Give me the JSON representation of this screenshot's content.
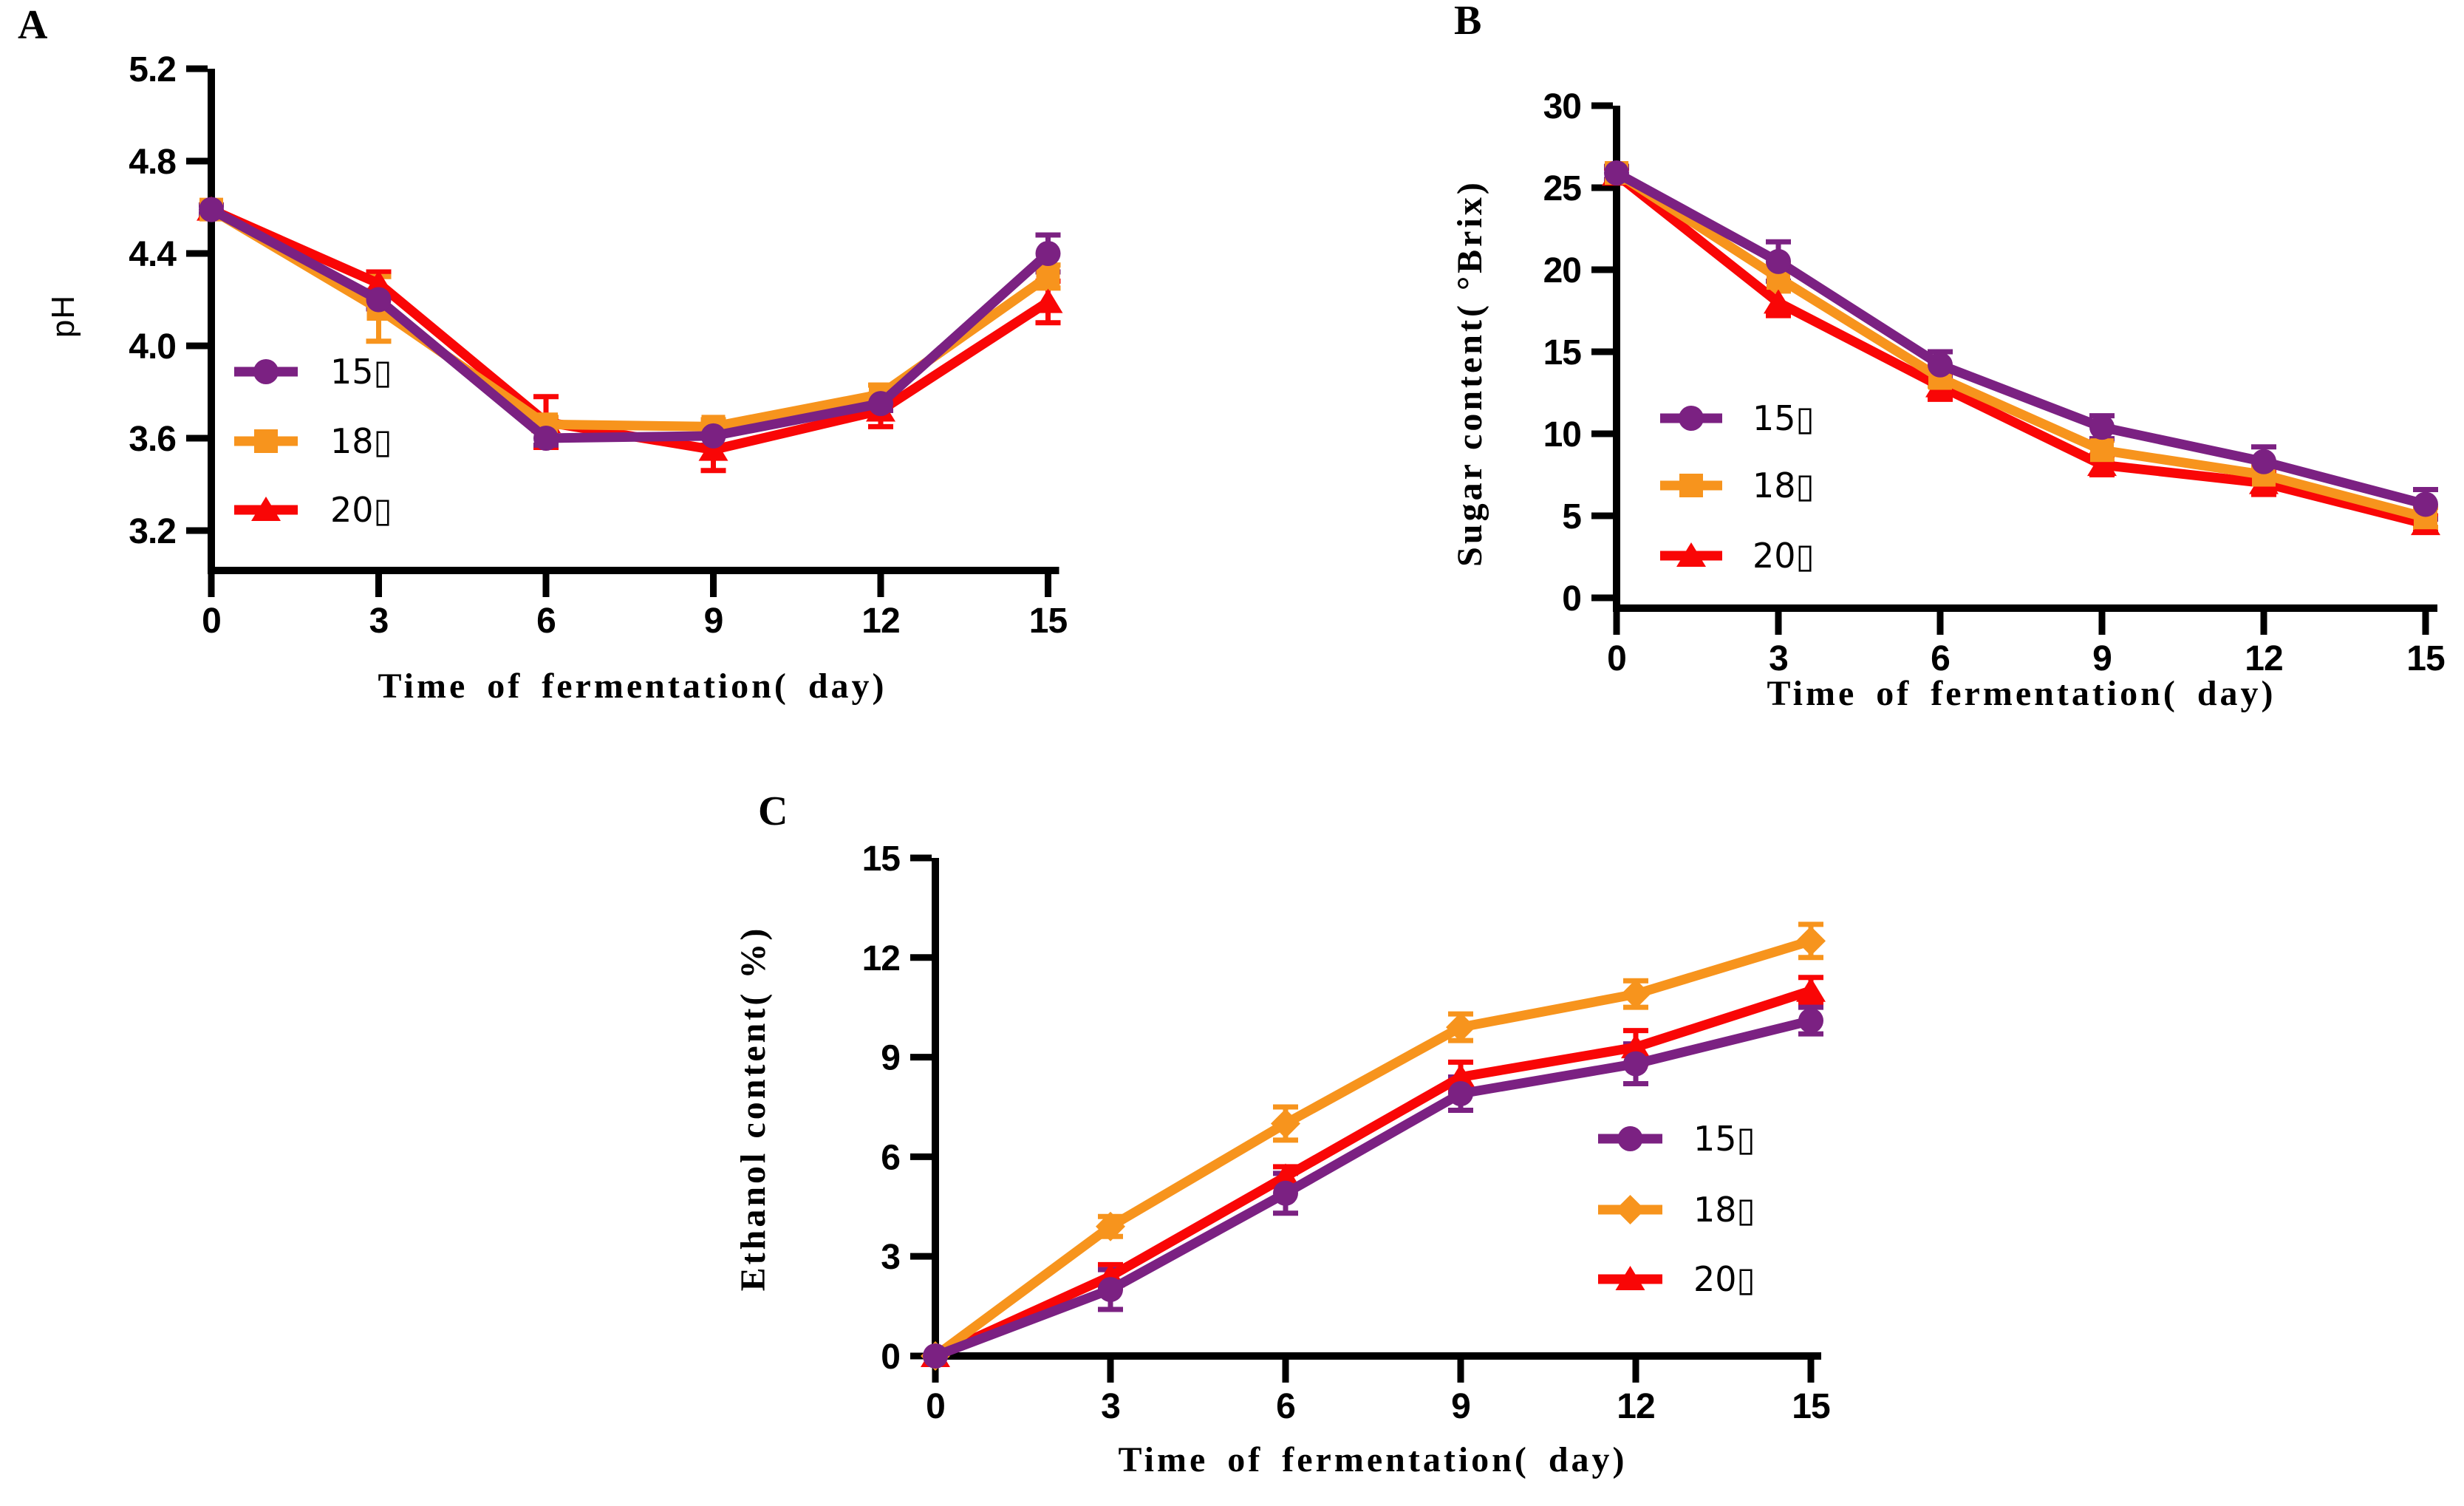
{
  "figure": {
    "background": "#ffffff",
    "description_visible_panels": [
      "A",
      "B",
      "C"
    ],
    "axis_color": "#000000"
  },
  "chart_data": [
    {
      "type": "line",
      "panel_label": "A",
      "xlabel": "Time of fermentation( day)",
      "ylabel": "pH",
      "x": [
        0,
        3,
        6,
        9,
        12,
        15
      ],
      "x_tick_labels": [
        "0",
        "3",
        "6",
        "9",
        "12",
        "15"
      ],
      "y_tick_labels": [
        "5.2",
        "4.8",
        "4.4",
        "4.0",
        "3.6",
        "3.2"
      ],
      "y_ticks": [
        5.2,
        4.8,
        4.4,
        4.0,
        3.6,
        3.2
      ],
      "xlim": [
        0,
        15
      ],
      "ylim": [
        3.2,
        5.2
      ],
      "grid": false,
      "legend_position": "inside lower-left",
      "series": [
        {
          "name": "15▯",
          "group": "15 C",
          "color": "#7B2182",
          "marker": "circle",
          "values": [
            4.59,
            4.2,
            3.6,
            3.61,
            3.75,
            4.4
          ],
          "errors": [
            0.02,
            0.04,
            0.03,
            0.04,
            0.03,
            0.08
          ]
        },
        {
          "name": "18▯",
          "group": "18 C",
          "color": "#F7941D",
          "marker": "square",
          "values": [
            4.59,
            4.16,
            3.66,
            3.65,
            3.79,
            4.3
          ],
          "errors": [
            0.02,
            0.14,
            0.03,
            0.03,
            0.04,
            0.05
          ]
        },
        {
          "name": "20▯",
          "group": "20 C",
          "color": "#F90606",
          "marker": "triangle",
          "values": [
            4.59,
            4.27,
            3.67,
            3.55,
            3.72,
            4.19
          ],
          "errors": [
            0.02,
            0.05,
            0.11,
            0.09,
            0.07,
            0.09
          ]
        }
      ]
    },
    {
      "type": "line",
      "panel_label": "B",
      "xlabel": "Time of fermentation( day)",
      "ylabel": "Sugar content( °Brix)",
      "x": [
        0,
        3,
        6,
        9,
        12,
        15
      ],
      "x_tick_labels": [
        "0",
        "3",
        "6",
        "9",
        "12",
        "15"
      ],
      "y_tick_labels": [
        "30",
        "25",
        "20",
        "15",
        "10",
        "5",
        "0"
      ],
      "y_ticks": [
        30,
        25,
        20,
        15,
        10,
        5,
        0
      ],
      "xlim": [
        0,
        15
      ],
      "ylim": [
        0,
        30
      ],
      "grid": false,
      "legend_position": "inside lower-left",
      "series": [
        {
          "name": "15▯",
          "group": "15 C",
          "color": "#7B2182",
          "marker": "circle",
          "values": [
            25.9,
            20.5,
            14.2,
            10.4,
            8.3,
            5.7
          ],
          "errors": [
            0.4,
            1.2,
            0.8,
            0.7,
            0.9,
            0.9
          ]
        },
        {
          "name": "18▯",
          "group": "18 C",
          "color": "#F7941D",
          "marker": "square",
          "values": [
            25.9,
            19.5,
            13.4,
            9.0,
            7.5,
            4.9
          ],
          "errors": [
            0.4,
            0.8,
            0.5,
            0.6,
            0.5,
            0.6
          ]
        },
        {
          "name": "20▯",
          "group": "20 C",
          "color": "#F90606",
          "marker": "triangle",
          "values": [
            25.8,
            18.0,
            12.9,
            8.1,
            7.0,
            4.5
          ],
          "errors": [
            0.4,
            0.8,
            0.8,
            0.6,
            0.7,
            0.5
          ]
        }
      ]
    },
    {
      "type": "line",
      "panel_label": "C",
      "xlabel": "Time of fermentation( day)",
      "ylabel": "Ethanol content( %)",
      "x": [
        0,
        3,
        6,
        9,
        12,
        15
      ],
      "x_tick_labels": [
        "0",
        "3",
        "6",
        "9",
        "12",
        "15"
      ],
      "y_tick_labels": [
        "15",
        "12",
        "9",
        "6",
        "3",
        "0"
      ],
      "y_ticks": [
        15,
        12,
        9,
        6,
        3,
        0
      ],
      "xlim": [
        0,
        15
      ],
      "ylim": [
        0,
        15
      ],
      "grid": false,
      "legend_position": "inside lower-right",
      "series": [
        {
          "name": "15▯",
          "group": "15 C",
          "color": "#7B2182",
          "marker": "circle",
          "values": [
            0,
            2.0,
            4.9,
            7.9,
            8.8,
            10.1
          ],
          "errors": [
            0,
            0.6,
            0.6,
            0.5,
            0.6,
            0.4
          ]
        },
        {
          "name": "18▯",
          "group": "18 C",
          "color": "#F7941D",
          "marker": "diamond",
          "values": [
            0,
            3.9,
            7.0,
            9.9,
            10.9,
            12.5
          ],
          "errors": [
            0,
            0.3,
            0.5,
            0.4,
            0.4,
            0.5
          ]
        },
        {
          "name": "20▯",
          "group": "20 C",
          "color": "#F90606",
          "marker": "triangle",
          "values": [
            0,
            2.4,
            5.4,
            8.4,
            9.3,
            11.0
          ],
          "errors": [
            0,
            0.35,
            0.3,
            0.45,
            0.5,
            0.4
          ]
        }
      ]
    }
  ]
}
